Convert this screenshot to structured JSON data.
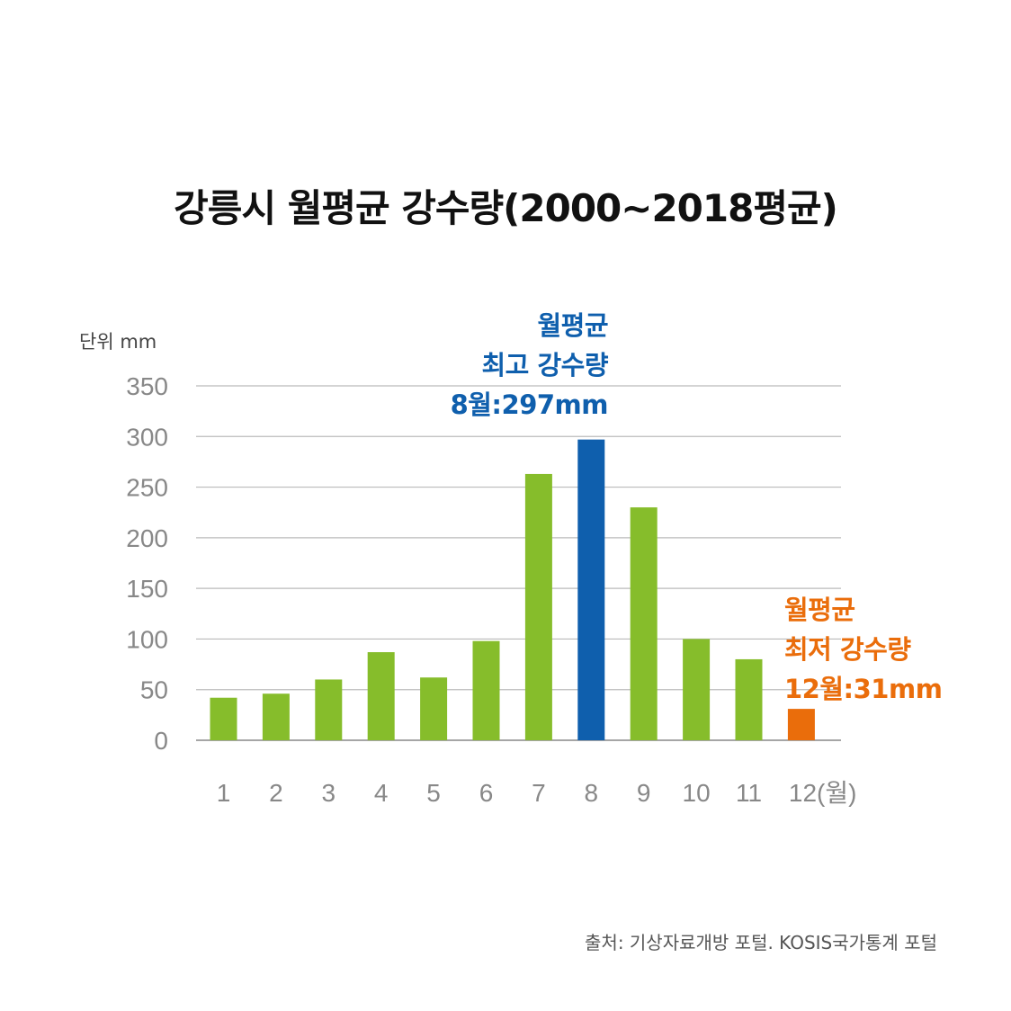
{
  "title": "강릉시 월평균 강수량(2000~2018평균)",
  "unit_label": "단위 mm",
  "source": "출처: 기상자료개방 포털. KOSIS국가통계 포털",
  "colors": {
    "normal": "#86bd2b",
    "max": "#0f5fad",
    "min": "#ea6d0b",
    "grid": "#bbbbbb",
    "axis": "#888888"
  },
  "annotations": {
    "max": {
      "line1": "월평균",
      "line2": "최고 강수량",
      "line3": "8월:297mm"
    },
    "min": {
      "line1": "월평균",
      "line2": "최저 강수량",
      "line3": "12월:31mm"
    }
  },
  "chart_data": {
    "type": "bar",
    "title": "강릉시 월평균 강수량(2000~2018평균)",
    "ylabel": "단위 mm",
    "xlabel": "(월)",
    "categories": [
      "1",
      "2",
      "3",
      "4",
      "5",
      "6",
      "7",
      "8",
      "9",
      "10",
      "11",
      "12"
    ],
    "x_tick_labels": [
      "1",
      "2",
      "3",
      "4",
      "5",
      "6",
      "7",
      "8",
      "9",
      "10",
      "11",
      "12(월)"
    ],
    "values": [
      42,
      46,
      60,
      87,
      62,
      98,
      263,
      297,
      230,
      100,
      80,
      31
    ],
    "highlight": {
      "max_index": 7,
      "min_index": 11
    },
    "ylim": [
      0,
      350
    ],
    "yticks": [
      0,
      50,
      100,
      150,
      200,
      250,
      300,
      350
    ],
    "grid": true
  }
}
